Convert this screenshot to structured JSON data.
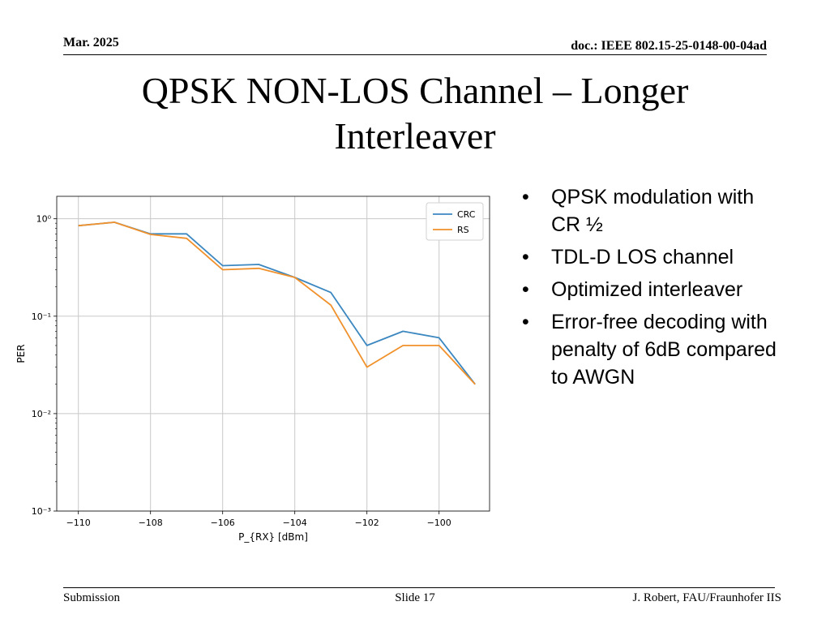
{
  "header": {
    "date": "Mar. 2025",
    "doc": "doc.: IEEE 802.15-25-0148-00-04ad"
  },
  "title": "QPSK NON-LOS Channel – Longer Interleaver",
  "bullets": [
    "QPSK modulation with CR ½",
    "TDL-D LOS channel",
    "Optimized interleaver",
    "Error-free decoding with penalty of 6dB compared to AWGN"
  ],
  "footer": {
    "left": "Submission",
    "center": "Slide 17",
    "right": "J. Robert, FAU/Fraunhofer IIS"
  },
  "chart_data": {
    "type": "line",
    "xlabel": "P_{RX} [dBm]",
    "ylabel": "PER",
    "xlim": [
      -110.6,
      -98.6
    ],
    "ylim": [
      0.001,
      1.7
    ],
    "yscale": "log",
    "grid": true,
    "legend": "top-right",
    "xticks": [
      -110,
      -108,
      -106,
      -104,
      -102,
      -100
    ],
    "xtick_labels": [
      "−110",
      "−108",
      "−106",
      "−104",
      "−102",
      "−100"
    ],
    "yticks": [
      1,
      0.1,
      0.01,
      0.001
    ],
    "ytick_labels": [
      "10⁰",
      "10⁻¹",
      "10⁻²",
      "10⁻³"
    ],
    "x": [
      -110,
      -109,
      -108,
      -107,
      -106,
      -105,
      -104,
      -103,
      -102,
      -101,
      -100,
      -99
    ],
    "series": [
      {
        "name": "CRC",
        "color": "#3b87c0",
        "values": [
          0.85,
          0.92,
          0.7,
          0.7,
          0.33,
          0.34,
          0.25,
          0.175,
          0.05,
          0.07,
          0.06,
          0.02
        ]
      },
      {
        "name": "RS",
        "color": "#f0912c",
        "values": [
          0.85,
          0.92,
          0.69,
          0.63,
          0.3,
          0.31,
          0.25,
          0.13,
          0.03,
          0.05,
          0.05,
          0.02
        ]
      }
    ]
  }
}
